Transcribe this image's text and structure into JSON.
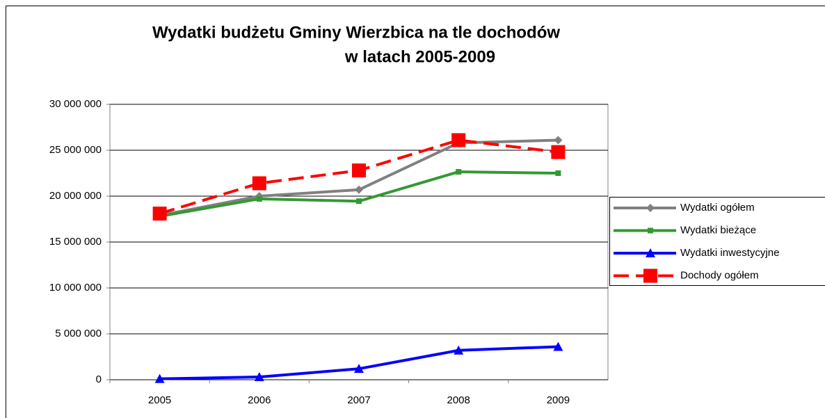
{
  "chart_data": {
    "type": "line",
    "title": [
      "Wydatki budżetu Gminy Wierzbica na tle dochodów",
      "w latach 2005-2009"
    ],
    "categories": [
      "2005",
      "2006",
      "2007",
      "2008",
      "2009"
    ],
    "series": [
      {
        "name": "Wydatki ogółem",
        "color": "#808080",
        "marker": "diamond",
        "dashed": false,
        "values": [
          17900000,
          20000000,
          20700000,
          25800000,
          26100000
        ]
      },
      {
        "name": "Wydatki bieżące",
        "color": "#339933",
        "marker": "square",
        "dashed": false,
        "values": [
          17800000,
          19700000,
          19450000,
          22650000,
          22500000
        ]
      },
      {
        "name": "Wydatki inwestycyjne",
        "color": "#0000ff",
        "marker": "triangle",
        "dashed": false,
        "values": [
          100000,
          300000,
          1200000,
          3200000,
          3600000
        ]
      },
      {
        "name": "Dochody  ogółem",
        "color": "#ff0000",
        "marker": "bigsquare",
        "dashed": true,
        "values": [
          18100000,
          21400000,
          22800000,
          26100000,
          24800000
        ]
      }
    ],
    "ylim": [
      0,
      30000000
    ],
    "yticks": [
      {
        "value": 0,
        "label": "0"
      },
      {
        "value": 5000000,
        "label": "5 000 000"
      },
      {
        "value": 10000000,
        "label": "10 000 000"
      },
      {
        "value": 15000000,
        "label": "15 000 000"
      },
      {
        "value": 20000000,
        "label": "20 000 000"
      },
      {
        "value": 25000000,
        "label": "25 000 000"
      },
      {
        "value": 30000000,
        "label": "30 000 000"
      }
    ],
    "grid": true,
    "legend": "right"
  }
}
